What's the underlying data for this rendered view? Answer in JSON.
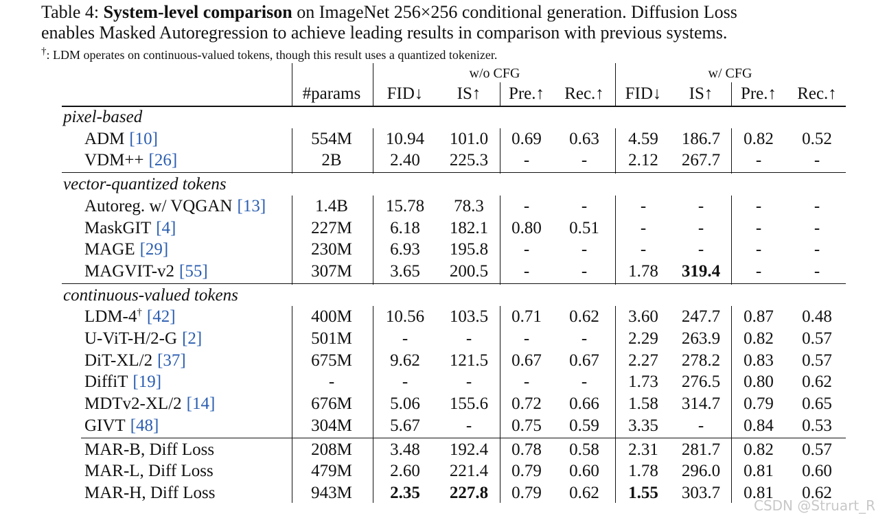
{
  "caption": {
    "label": "Table 4:",
    "emphasis": "System-level comparison",
    "text": [
      "on ImageNet 256×256 conditional generation. Diffusion Loss",
      "enables Masked Autoregression to achieve leading results in comparison with previous systems."
    ]
  },
  "footnote": {
    "mark": "†",
    "text": ": LDM operates on continuous-valued tokens, though this result uses a quantized tokenizer."
  },
  "table": {
    "groups": [
      "w/o CFG",
      "w/ CFG"
    ],
    "columns": [
      "#params",
      "FID↓",
      "IS↑",
      "Pre.↑",
      "Rec.↑",
      "FID↓",
      "IS↑",
      "Pre.↑",
      "Rec.↑"
    ],
    "sections": [
      {
        "title": "pixel-based",
        "rows": [
          {
            "method": "ADM",
            "ref": "[10]",
            "cells": [
              "554M",
              "10.94",
              "101.0",
              "0.69",
              "0.63",
              "4.59",
              "186.7",
              "0.82",
              "0.52"
            ]
          },
          {
            "method": "VDM++",
            "ref": "[26]",
            "cells": [
              "2B",
              "2.40",
              "225.3",
              "-",
              "-",
              "2.12",
              "267.7",
              "-",
              "-"
            ]
          }
        ]
      },
      {
        "title": "vector-quantized tokens",
        "rows": [
          {
            "method": "Autoreg. w/ VQGAN",
            "ref": "[13]",
            "cells": [
              "1.4B",
              "15.78",
              "78.3",
              "-",
              "-",
              "-",
              "-",
              "-",
              "-"
            ]
          },
          {
            "method": "MaskGIT",
            "ref": "[4]",
            "cells": [
              "227M",
              "6.18",
              "182.1",
              "0.80",
              "0.51",
              "-",
              "-",
              "-",
              "-"
            ]
          },
          {
            "method": "MAGE",
            "ref": "[29]",
            "cells": [
              "230M",
              "6.93",
              "195.8",
              "-",
              "-",
              "-",
              "-",
              "-",
              "-"
            ]
          },
          {
            "method": "MAGVIT-v2",
            "ref": "[55]",
            "cells": [
              "307M",
              "3.65",
              "200.5",
              "-",
              "-",
              "1.78",
              "319.4",
              "-",
              "-"
            ],
            "bold": [
              6
            ]
          }
        ]
      },
      {
        "title": "continuous-valued tokens",
        "rows": [
          {
            "method": "LDM-4",
            "sup": "†",
            "ref": "[42]",
            "cells": [
              "400M",
              "10.56",
              "103.5",
              "0.71",
              "0.62",
              "3.60",
              "247.7",
              "0.87",
              "0.48"
            ]
          },
          {
            "method": "U-ViT-H/2-G",
            "ref": "[2]",
            "cells": [
              "501M",
              "-",
              "-",
              "-",
              "-",
              "2.29",
              "263.9",
              "0.82",
              "0.57"
            ]
          },
          {
            "method": "DiT-XL/2",
            "ref": "[37]",
            "cells": [
              "675M",
              "9.62",
              "121.5",
              "0.67",
              "0.67",
              "2.27",
              "278.2",
              "0.83",
              "0.57"
            ]
          },
          {
            "method": "DiffiT",
            "ref": "[19]",
            "cells": [
              "-",
              "-",
              "-",
              "-",
              "-",
              "1.73",
              "276.5",
              "0.80",
              "0.62"
            ]
          },
          {
            "method": "MDTv2-XL/2",
            "ref": "[14]",
            "cells": [
              "676M",
              "5.06",
              "155.6",
              "0.72",
              "0.66",
              "1.58",
              "314.7",
              "0.79",
              "0.65"
            ]
          },
          {
            "method": "GIVT",
            "ref": "[48]",
            "cells": [
              "304M",
              "5.67",
              "-",
              "0.75",
              "0.59",
              "3.35",
              "-",
              "0.84",
              "0.53"
            ]
          }
        ]
      },
      {
        "rows": [
          {
            "method": "MAR-B, Diff Loss",
            "cells": [
              "208M",
              "3.48",
              "192.4",
              "0.78",
              "0.58",
              "2.31",
              "281.7",
              "0.82",
              "0.57"
            ]
          },
          {
            "method": "MAR-L, Diff Loss",
            "cells": [
              "479M",
              "2.60",
              "221.4",
              "0.79",
              "0.60",
              "1.78",
              "296.0",
              "0.81",
              "0.60"
            ]
          },
          {
            "method": "MAR-H, Diff Loss",
            "cells": [
              "943M",
              "2.35",
              "227.8",
              "0.79",
              "0.62",
              "1.55",
              "303.7",
              "0.81",
              "0.62"
            ],
            "bold": [
              1,
              2,
              5
            ]
          }
        ]
      }
    ]
  },
  "watermark": "CSDN @Struart_R"
}
